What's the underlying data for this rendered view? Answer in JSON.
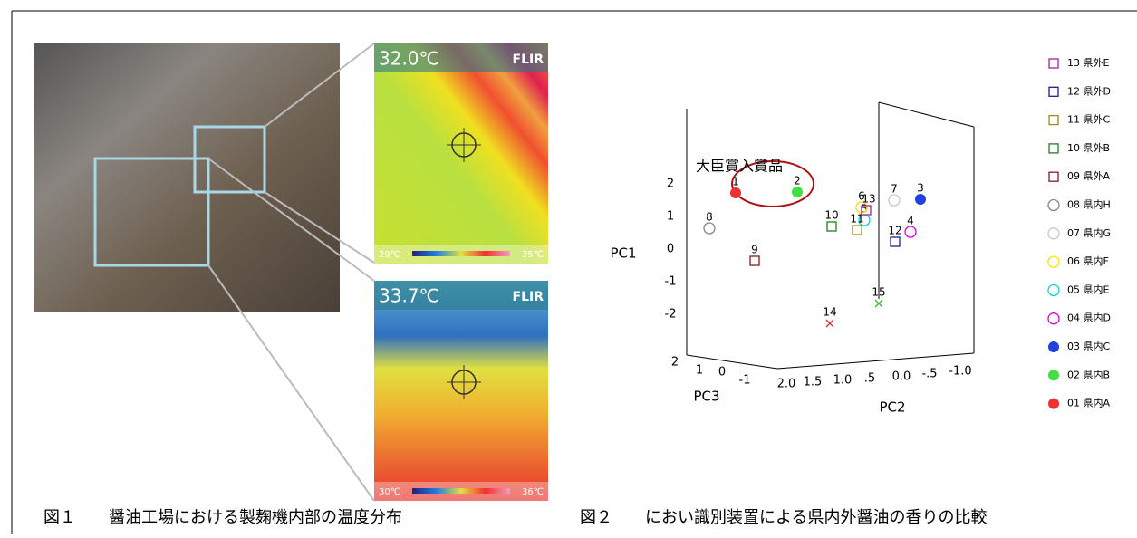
{
  "figure1": {
    "caption": "図１　　醤油工場における製麹機内部の温度分布",
    "thermal_images": [
      {
        "temperature": "32.0℃",
        "brand": "FLIR",
        "scale_min": "29℃",
        "scale_max": "35℃"
      },
      {
        "temperature": "33.7℃",
        "brand": "FLIR",
        "scale_min": "30℃",
        "scale_max": "36℃"
      }
    ]
  },
  "figure2": {
    "caption": "図２　　におい識別装置による県内外醤油の香りの比較",
    "annotation": "大臣賞入賞品",
    "pc1_label": "PC1",
    "pc1_ticks": [
      "2",
      "1",
      "0",
      "-1",
      "-2"
    ],
    "pc3_label": "PC3",
    "pc3_ticks": [
      "2",
      "1",
      "0",
      "-1"
    ],
    "pc2_label": "PC2",
    "pc2_ticks": [
      "2.0",
      "1.5",
      "1.0",
      ".5",
      "0.0",
      "-.5",
      "-1.0"
    ],
    "points": [
      {
        "label": "1"
      },
      {
        "label": "2"
      },
      {
        "label": "3"
      },
      {
        "label": "4"
      },
      {
        "label": "5"
      },
      {
        "label": "6"
      },
      {
        "label": "7"
      },
      {
        "label": "8"
      },
      {
        "label": "9"
      },
      {
        "label": "10"
      },
      {
        "label": "11"
      },
      {
        "label": "12"
      },
      {
        "label": "13"
      },
      {
        "label": "14"
      },
      {
        "label": "15"
      }
    ],
    "legend": [
      {
        "label": "13 県外E"
      },
      {
        "label": "12 県外D"
      },
      {
        "label": "11 県外C"
      },
      {
        "label": "10 県外B"
      },
      {
        "label": "09 県外A"
      },
      {
        "label": "08 県内H"
      },
      {
        "label": "07 県内G"
      },
      {
        "label": "06 県内F"
      },
      {
        "label": "05 県内E"
      },
      {
        "label": "04 県内D"
      },
      {
        "label": "03 県内C"
      },
      {
        "label": "02 県内B"
      },
      {
        "label": "01 県内A"
      }
    ]
  }
}
